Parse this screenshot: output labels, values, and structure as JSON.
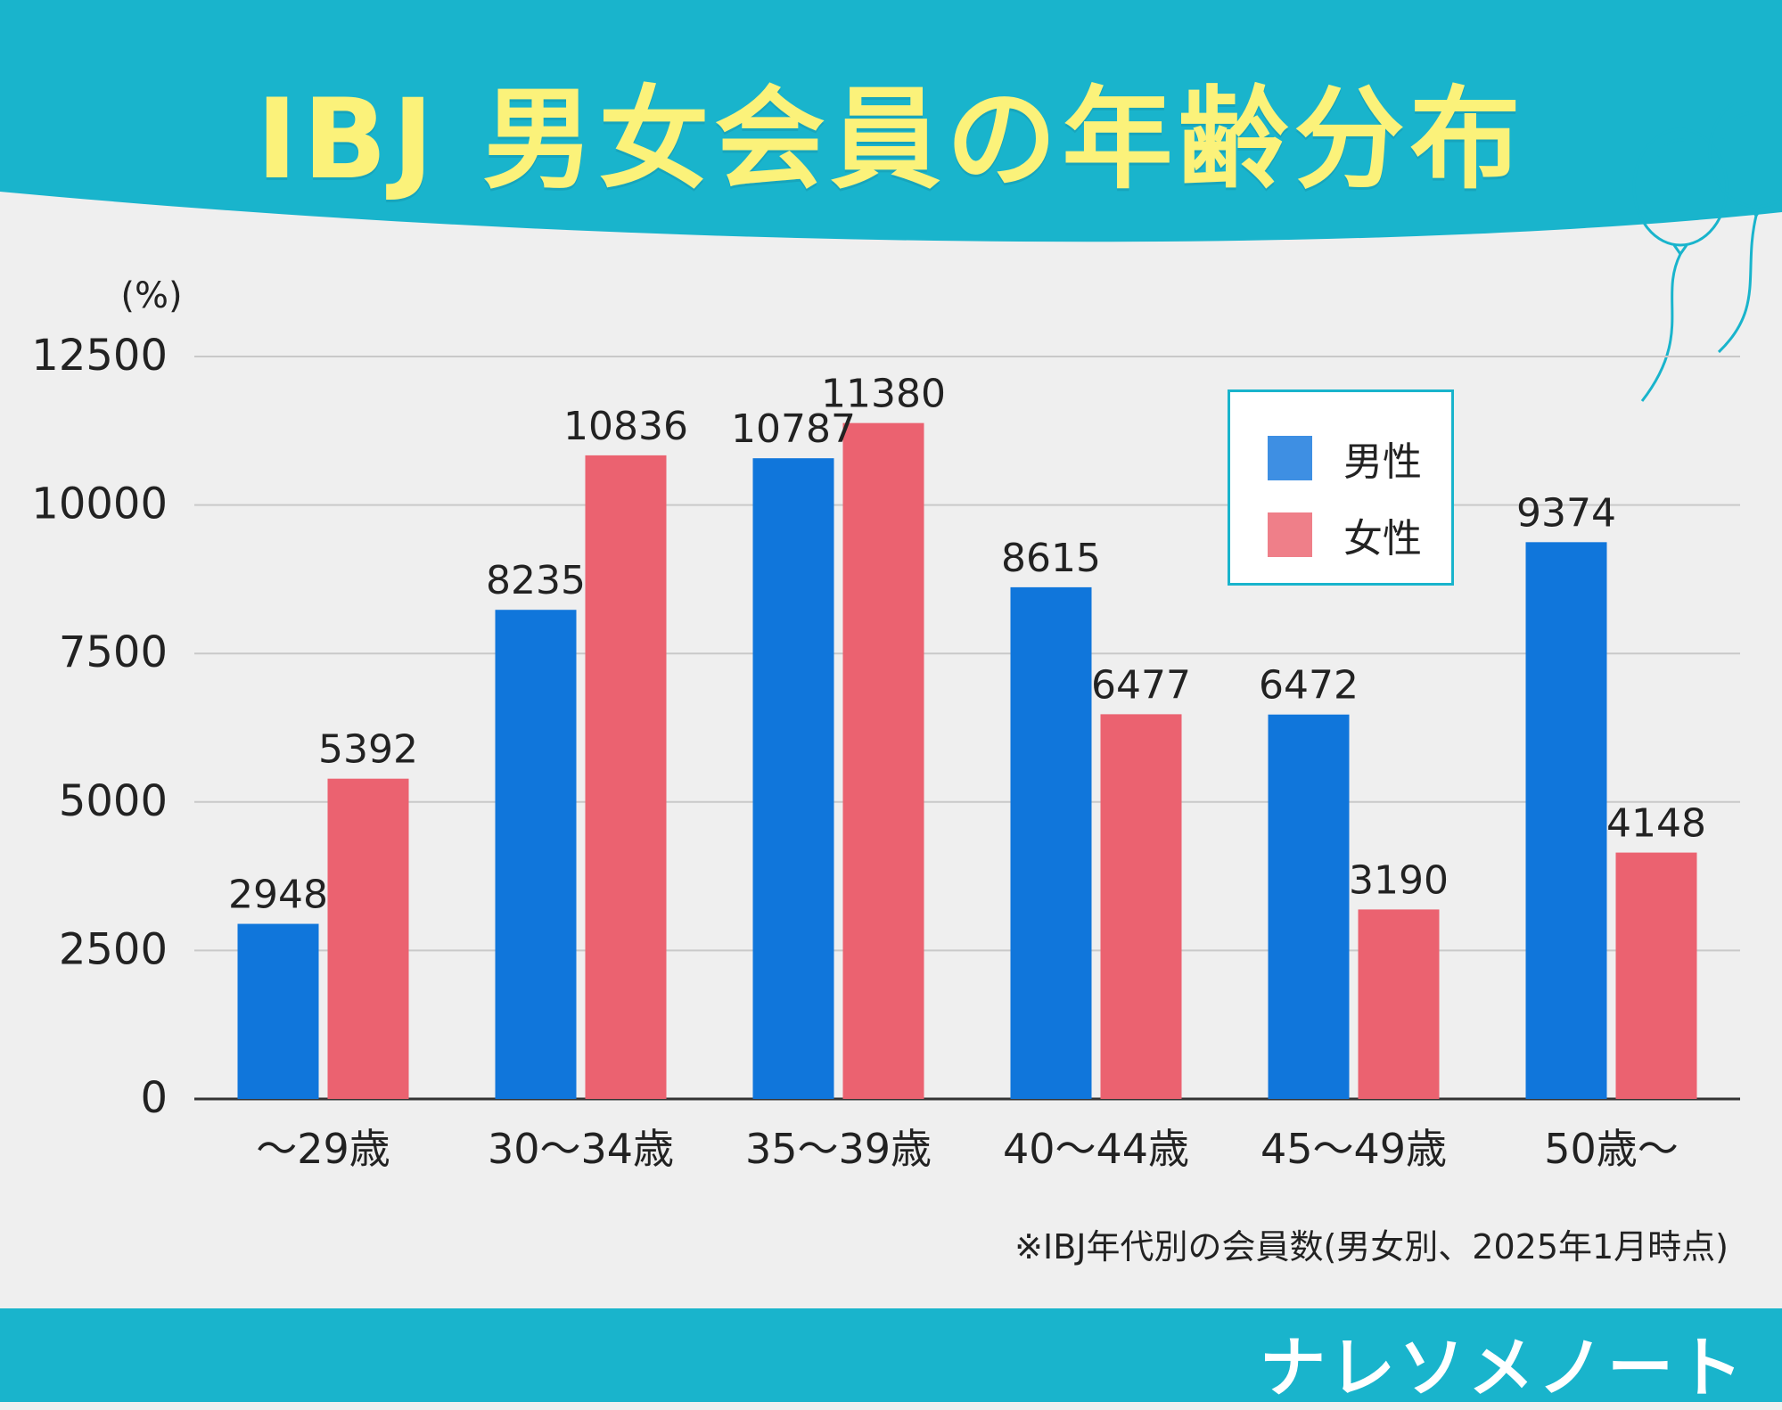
{
  "title": "IBJ 男女会員の年齢分布",
  "note": "※IBJ年代別の会員数(男女別、2025年1月時点)",
  "brand": "ナレソメノート",
  "colors": {
    "header": "#19b4cc",
    "title": "#fbf27a",
    "male": "#1076db",
    "female": "#eb6270",
    "background": "#efefef"
  },
  "legend": {
    "male": "男性",
    "female": "女性"
  },
  "chart_data": {
    "type": "bar",
    "unit_label": "(%)",
    "categories": [
      "〜29歳",
      "30〜34歳",
      "35〜39歳",
      "40〜44歳",
      "45〜49歳",
      "50歳〜"
    ],
    "series": [
      {
        "name": "男性",
        "color": "#1076db",
        "values": [
          2948,
          8235,
          10787,
          8615,
          6472,
          9374
        ]
      },
      {
        "name": "女性",
        "color": "#eb6270",
        "values": [
          5392,
          10836,
          11380,
          6477,
          3190,
          4148
        ]
      }
    ],
    "yticks": [
      0,
      2500,
      5000,
      7500,
      10000,
      12500
    ],
    "ylim": [
      0,
      12500
    ],
    "grid": true,
    "legend_position": "top-right"
  }
}
